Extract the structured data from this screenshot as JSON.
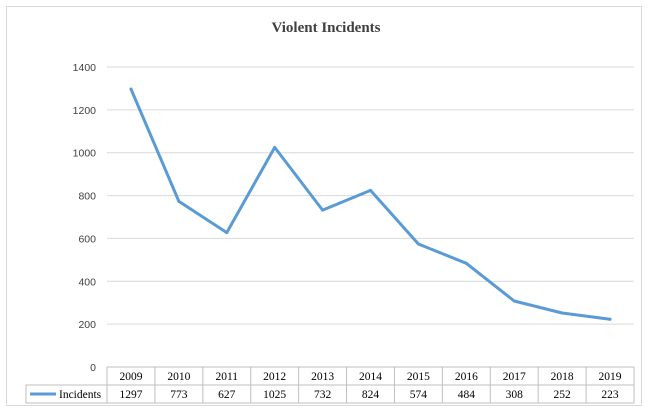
{
  "chart_data": {
    "type": "line",
    "title": "Violent Incidents",
    "xlabel": "",
    "ylabel": "",
    "ylim": [
      0,
      1400
    ],
    "yticks": [
      0,
      200,
      400,
      600,
      800,
      1000,
      1200,
      1400
    ],
    "grid": true,
    "legend": "data-table",
    "categories": [
      "2009",
      "2010",
      "2011",
      "2012",
      "2013",
      "2014",
      "2015",
      "2016",
      "2017",
      "2018",
      "2019"
    ],
    "series": [
      {
        "name": "Incidents",
        "color": "#5b9bd5",
        "values": [
          1297,
          773,
          627,
          1025,
          732,
          824,
          574,
          484,
          308,
          252,
          223
        ]
      }
    ],
    "data_table": true
  }
}
